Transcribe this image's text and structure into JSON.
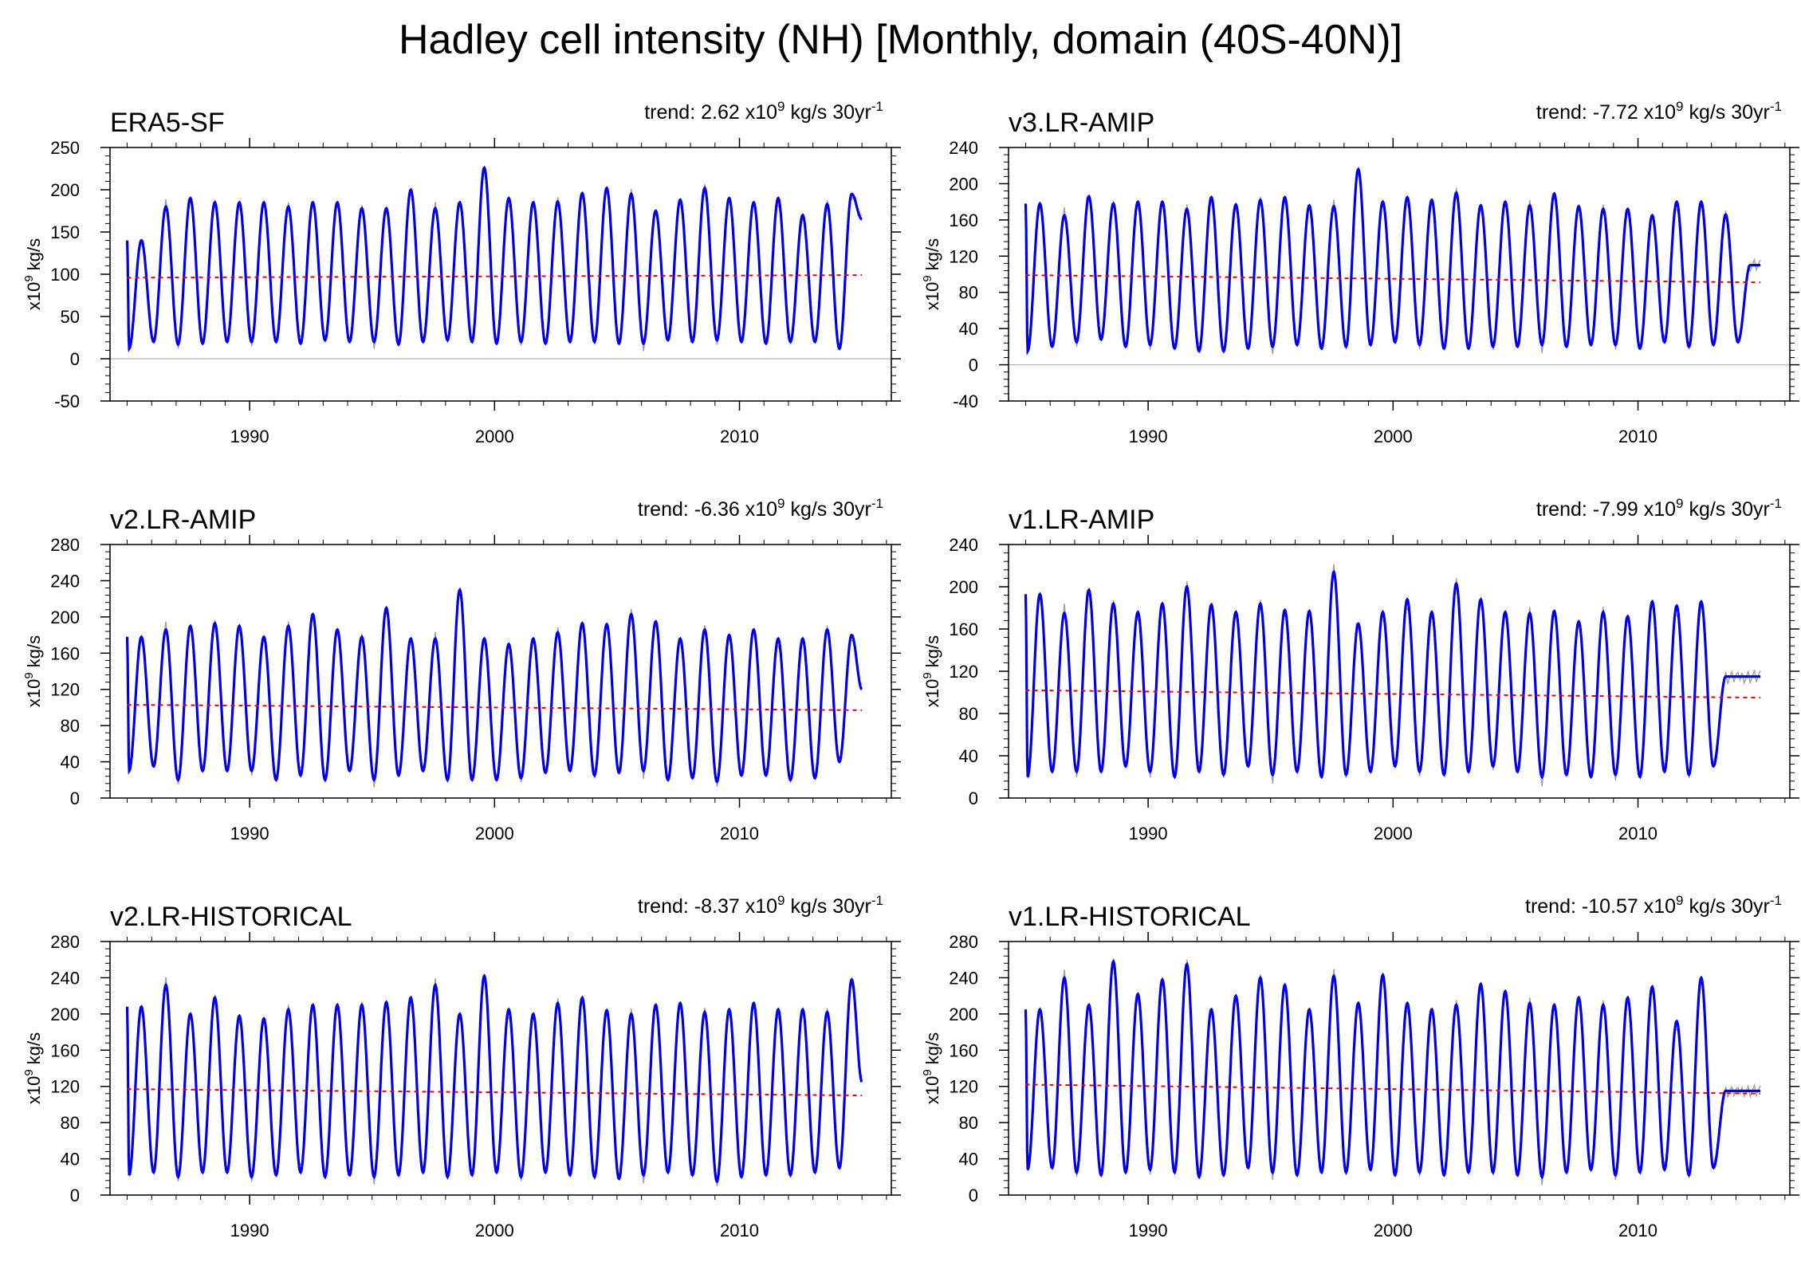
{
  "figure_title": "Hadley cell intensity (NH) [Monthly, domain (40S-40N)]",
  "chart_data": [
    {
      "type": "line",
      "panel_title": "ERA5-SF",
      "trend": {
        "prefix": "trend: ",
        "value": "2.62",
        "unit_base": " x10",
        "unit_exp": "9",
        "unit_tail": " kg/s 30yr",
        "per_exp": "-1"
      },
      "ylabel": {
        "base": "x10",
        "exp": "9",
        "tail": " kg/s"
      },
      "ylim": [
        -50,
        250
      ],
      "yticks": [
        -50,
        0,
        50,
        100,
        150,
        200,
        250
      ],
      "xlim": [
        1984.3,
        2016.2
      ],
      "xticks": [
        1990,
        2000,
        2010
      ],
      "zero_line": true,
      "x_start": 1985.0,
      "x_end": 2015.0,
      "annual_peaks": [
        140,
        180,
        190,
        185,
        185,
        185,
        180,
        185,
        185,
        178,
        178,
        200,
        178,
        185,
        226,
        190,
        185,
        186,
        196,
        202,
        195,
        175,
        188,
        202,
        190,
        185,
        190,
        170,
        183,
        195,
        180,
        165
      ],
      "annual_troughs": [
        12,
        20,
        17,
        18,
        20,
        20,
        20,
        18,
        22,
        20,
        20,
        17,
        20,
        22,
        20,
        18,
        20,
        18,
        20,
        20,
        18,
        18,
        22,
        20,
        22,
        20,
        18,
        20,
        20,
        12
      ],
      "trend_start": 96,
      "trend_end": 99,
      "series": [
        {
          "name": "monthly",
          "color": "#a0a0a0"
        },
        {
          "name": "smoothed",
          "color": "#0000ee"
        },
        {
          "name": "trend",
          "color": "#ee0000"
        }
      ]
    },
    {
      "type": "line",
      "panel_title": "v3.LR-AMIP",
      "trend": {
        "prefix": "trend: ",
        "value": "-7.72",
        "unit_base": " x10",
        "unit_exp": "9",
        "unit_tail": " kg/s 30yr",
        "per_exp": "-1"
      },
      "ylabel": {
        "base": "x10",
        "exp": "9",
        "tail": " kg/s"
      },
      "ylim": [
        -40,
        240
      ],
      "yticks": [
        -40,
        0,
        40,
        80,
        120,
        160,
        200,
        240
      ],
      "xlim": [
        1984.3,
        2016.2
      ],
      "xticks": [
        1990,
        2000,
        2010
      ],
      "zero_line": true,
      "x_start": 1985.0,
      "x_end": 2015.0,
      "annual_peaks": [
        178,
        165,
        186,
        178,
        180,
        180,
        172,
        185,
        177,
        182,
        185,
        176,
        175,
        216,
        180,
        185,
        182,
        190,
        176,
        180,
        176,
        189,
        175,
        172,
        172,
        165,
        180,
        180,
        166,
        110
      ],
      "annual_troughs": [
        15,
        20,
        25,
        28,
        20,
        22,
        18,
        15,
        15,
        18,
        20,
        22,
        18,
        20,
        22,
        25,
        22,
        18,
        18,
        20,
        20,
        22,
        20,
        22,
        22,
        18,
        25,
        20,
        22,
        25
      ],
      "trend_start": 99,
      "trend_end": 91,
      "series": [
        {
          "name": "monthly",
          "color": "#a0a0a0"
        },
        {
          "name": "smoothed",
          "color": "#0000ee"
        },
        {
          "name": "trend",
          "color": "#ee0000"
        }
      ]
    },
    {
      "type": "line",
      "panel_title": "v2.LR-AMIP",
      "trend": {
        "prefix": "trend: ",
        "value": "-6.36",
        "unit_base": " x10",
        "unit_exp": "9",
        "unit_tail": " kg/s 30yr",
        "per_exp": "-1"
      },
      "ylabel": {
        "base": "x10",
        "exp": "9",
        "tail": " kg/s"
      },
      "ylim": [
        0,
        280
      ],
      "yticks": [
        0,
        40,
        80,
        120,
        160,
        200,
        240,
        280
      ],
      "xlim": [
        1984.3,
        2016.2
      ],
      "xticks": [
        1990,
        2000,
        2010
      ],
      "zero_line": false,
      "x_start": 1985.0,
      "x_end": 2015.0,
      "annual_peaks": [
        178,
        186,
        190,
        193,
        190,
        178,
        190,
        203,
        186,
        178,
        210,
        176,
        176,
        230,
        176,
        170,
        176,
        183,
        193,
        192,
        203,
        195,
        176,
        186,
        180,
        186,
        176,
        176,
        186,
        180,
        120
      ],
      "annual_troughs": [
        30,
        35,
        20,
        30,
        30,
        30,
        20,
        25,
        20,
        30,
        20,
        25,
        30,
        20,
        20,
        20,
        22,
        28,
        30,
        25,
        28,
        30,
        20,
        22,
        18,
        25,
        25,
        20,
        22,
        40
      ],
      "trend_start": 103,
      "trend_end": 97,
      "series": [
        {
          "name": "monthly",
          "color": "#a0a0a0"
        },
        {
          "name": "smoothed",
          "color": "#0000ee"
        },
        {
          "name": "trend",
          "color": "#ee0000"
        }
      ]
    },
    {
      "type": "line",
      "panel_title": "v1.LR-AMIP",
      "trend": {
        "prefix": "trend: ",
        "value": "-7.99",
        "unit_base": " x10",
        "unit_exp": "9",
        "unit_tail": " kg/s 30yr",
        "per_exp": "-1"
      },
      "ylabel": {
        "base": "x10",
        "exp": "9",
        "tail": " kg/s"
      },
      "ylim": [
        0,
        240
      ],
      "yticks": [
        0,
        40,
        80,
        120,
        160,
        200,
        240
      ],
      "xlim": [
        1984.3,
        2016.2
      ],
      "xticks": [
        1990,
        2000,
        2010
      ],
      "zero_line": false,
      "x_start": 1985.0,
      "x_end": 2015.0,
      "annual_peaks": [
        193,
        175,
        197,
        184,
        176,
        184,
        200,
        183,
        176,
        184,
        178,
        177,
        214,
        165,
        176,
        188,
        176,
        203,
        188,
        176,
        175,
        177,
        167,
        176,
        172,
        186,
        182,
        186,
        115
      ],
      "annual_troughs": [
        20,
        25,
        25,
        25,
        30,
        25,
        20,
        25,
        22,
        30,
        22,
        25,
        20,
        22,
        25,
        30,
        25,
        22,
        25,
        30,
        25,
        20,
        22,
        20,
        22,
        20,
        25,
        22,
        30
      ],
      "trend_start": 102,
      "trend_end": 95,
      "series": [
        {
          "name": "monthly",
          "color": "#a0a0a0"
        },
        {
          "name": "smoothed",
          "color": "#0000ee"
        },
        {
          "name": "trend",
          "color": "#ee0000"
        }
      ]
    },
    {
      "type": "line",
      "panel_title": "v2.LR-HISTORICAL",
      "trend": {
        "prefix": "trend: ",
        "value": "-8.37",
        "unit_base": " x10",
        "unit_exp": "9",
        "unit_tail": " kg/s 30yr",
        "per_exp": "-1"
      },
      "ylabel": {
        "base": "x10",
        "exp": "9",
        "tail": " kg/s"
      },
      "ylim": [
        0,
        280
      ],
      "yticks": [
        0,
        40,
        80,
        120,
        160,
        200,
        240,
        280
      ],
      "xlim": [
        1984.3,
        2016.2
      ],
      "xticks": [
        1990,
        2000,
        2010
      ],
      "zero_line": false,
      "x_start": 1985.0,
      "x_end": 2015.0,
      "annual_peaks": [
        208,
        232,
        200,
        218,
        198,
        195,
        205,
        210,
        210,
        210,
        213,
        218,
        232,
        200,
        242,
        205,
        200,
        212,
        218,
        204,
        200,
        210,
        212,
        202,
        205,
        212,
        205,
        205,
        202,
        238,
        125
      ],
      "annual_troughs": [
        22,
        25,
        20,
        25,
        25,
        20,
        22,
        25,
        20,
        22,
        20,
        22,
        25,
        20,
        22,
        25,
        20,
        25,
        22,
        20,
        18,
        22,
        25,
        22,
        15,
        20,
        22,
        22,
        25,
        30
      ],
      "trend_start": 117,
      "trend_end": 110,
      "series": [
        {
          "name": "monthly",
          "color": "#a0a0a0"
        },
        {
          "name": "smoothed",
          "color": "#0000ee"
        },
        {
          "name": "trend",
          "color": "#ee0000"
        }
      ]
    },
    {
      "type": "line",
      "panel_title": "v1.LR-HISTORICAL",
      "trend": {
        "prefix": "trend: ",
        "value": "-10.57",
        "unit_base": " x10",
        "unit_exp": "9",
        "unit_tail": " kg/s 30yr",
        "per_exp": "-1"
      },
      "ylabel": {
        "base": "x10",
        "exp": "9",
        "tail": " kg/s"
      },
      "ylim": [
        0,
        280
      ],
      "yticks": [
        0,
        40,
        80,
        120,
        160,
        200,
        240,
        280
      ],
      "xlim": [
        1984.3,
        2016.2
      ],
      "xticks": [
        1990,
        2000,
        2010
      ],
      "zero_line": false,
      "x_start": 1985.0,
      "x_end": 2015.0,
      "annual_peaks": [
        205,
        240,
        210,
        258,
        222,
        238,
        255,
        205,
        220,
        240,
        232,
        205,
        242,
        212,
        243,
        212,
        205,
        210,
        233,
        225,
        212,
        210,
        218,
        210,
        218,
        230,
        192,
        240,
        115
      ],
      "annual_troughs": [
        28,
        30,
        25,
        22,
        25,
        28,
        25,
        20,
        22,
        30,
        25,
        22,
        25,
        25,
        28,
        22,
        25,
        22,
        25,
        25,
        22,
        20,
        25,
        28,
        22,
        25,
        28,
        22,
        30
      ],
      "trend_start": 122,
      "trend_end": 112,
      "series": [
        {
          "name": "monthly",
          "color": "#a0a0a0"
        },
        {
          "name": "smoothed",
          "color": "#0000ee"
        },
        {
          "name": "trend",
          "color": "#ee0000"
        }
      ]
    }
  ]
}
